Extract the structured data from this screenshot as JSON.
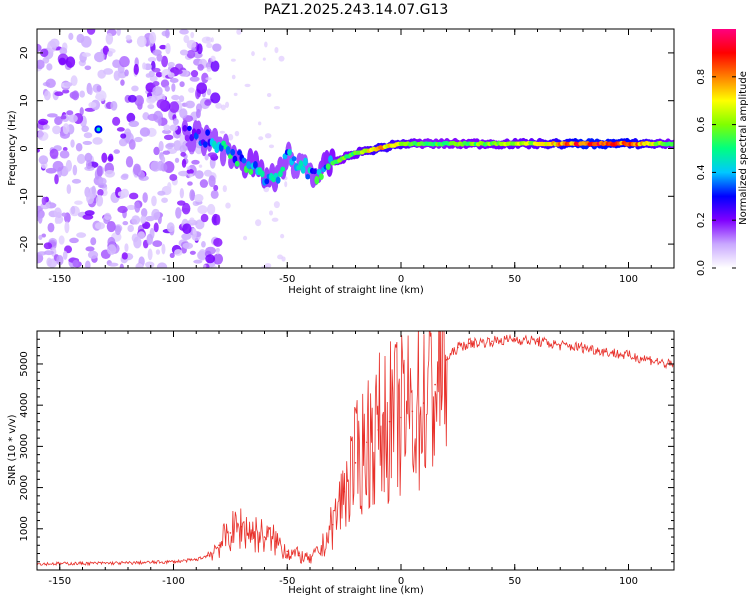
{
  "figure_title": "PAZ1.2025.243.14.07.G13",
  "chart_data": [
    {
      "type": "heatmap",
      "title": "PAZ1.2025.243.14.07.G13",
      "xlabel": "Height of straight line (km)",
      "ylabel": "Frequency (Hz)",
      "xlim": [
        -160,
        120
      ],
      "ylim": [
        -25,
        25
      ],
      "xticks": [
        -150,
        -100,
        -50,
        0,
        50,
        100
      ],
      "yticks": [
        -20,
        -10,
        0,
        10,
        20
      ],
      "colorbar": {
        "label": "Normalized spectral amplitude",
        "range": [
          0,
          1
        ],
        "ticks": [
          0.0,
          0.2,
          0.4,
          0.6,
          0.8
        ],
        "colormap": [
          "#ffffff",
          "#c9a8ff",
          "#8000ff",
          "#0000ff",
          "#00c8ff",
          "#00ff80",
          "#80ff00",
          "#ffff00",
          "#ff8000",
          "#ff0000",
          "#ff0080"
        ]
      },
      "ridge": {
        "height_km": [
          -95,
          -85,
          -75,
          -65,
          -55,
          -50,
          -45,
          -38,
          -30,
          -20,
          -10,
          0,
          10,
          20,
          40,
          60,
          80,
          100,
          120
        ],
        "frequency_hz": [
          3,
          2,
          -1,
          -4,
          -7,
          -2,
          -3,
          -6,
          -3,
          -1,
          0,
          1,
          1,
          1,
          1,
          1,
          1,
          1,
          1
        ],
        "amplitude": [
          0.25,
          0.35,
          0.45,
          0.5,
          0.45,
          0.45,
          0.4,
          0.45,
          0.55,
          0.6,
          0.75,
          0.7,
          0.55,
          0.55,
          0.6,
          0.65,
          0.9,
          0.85,
          0.55
        ]
      },
      "noise_region_km": [
        -160,
        -90
      ]
    },
    {
      "type": "line",
      "xlabel": "Height of straight line (km)",
      "ylabel": "SNR (10 * v/v)",
      "xlim": [
        -160,
        120
      ],
      "ylim": [
        0,
        5800
      ],
      "xticks": [
        -150,
        -100,
        -50,
        0,
        50,
        100
      ],
      "yticks": [
        1000,
        2000,
        3000,
        4000,
        5000
      ],
      "series": [
        {
          "name": "SNR",
          "color": "#e8302a",
          "x": [
            -160,
            -140,
            -120,
            -100,
            -90,
            -85,
            -80,
            -75,
            -70,
            -65,
            -60,
            -55,
            -50,
            -45,
            -40,
            -35,
            -30,
            -25,
            -20,
            -15,
            -10,
            -5,
            0,
            5,
            10,
            15,
            20,
            25,
            30,
            40,
            50,
            60,
            70,
            80,
            90,
            100,
            110,
            120
          ],
          "values": [
            150,
            160,
            170,
            200,
            250,
            350,
            600,
            900,
            1050,
            900,
            800,
            700,
            450,
            350,
            250,
            500,
            1100,
            1900,
            2600,
            3100,
            3400,
            3600,
            3700,
            3850,
            4050,
            4500,
            5100,
            5400,
            5500,
            5550,
            5600,
            5550,
            5450,
            5400,
            5300,
            5200,
            5100,
            4950
          ]
        }
      ]
    }
  ]
}
